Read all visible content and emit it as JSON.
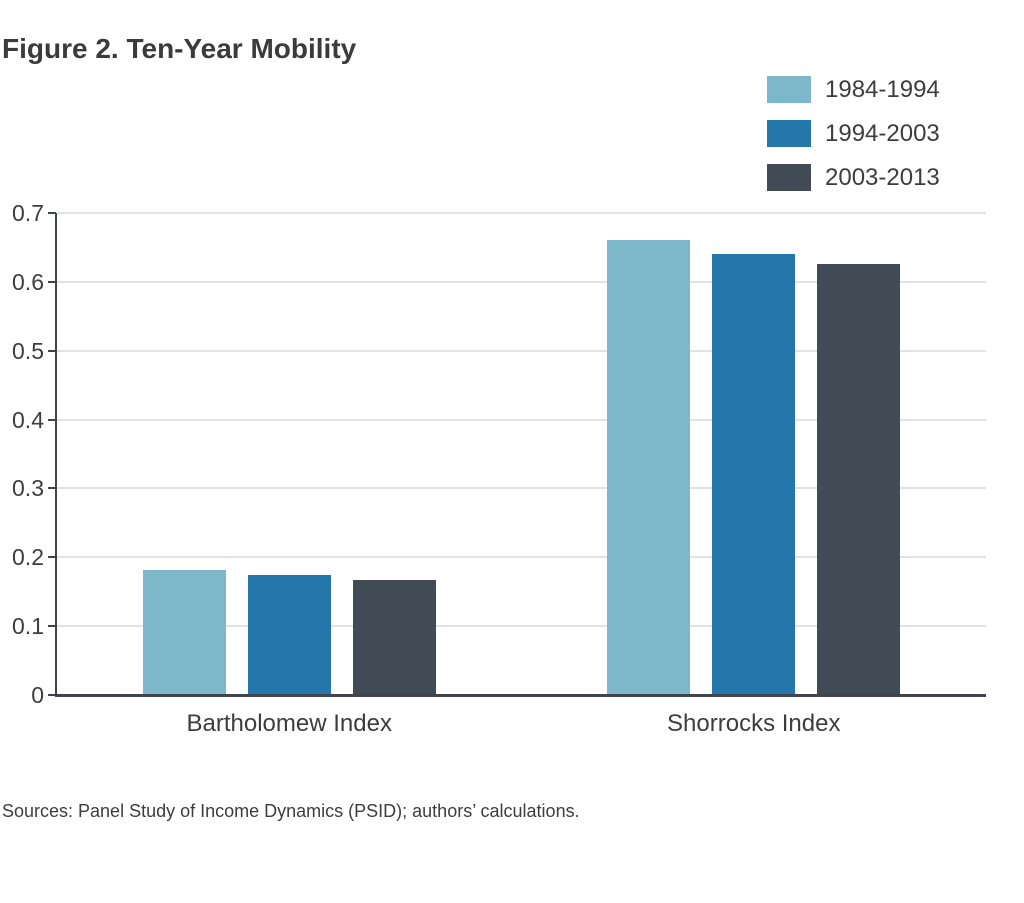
{
  "figure": {
    "title": "Figure 2. Ten-Year Mobility",
    "source_note": "Sources: Panel Study of Income Dynamics (PSID); authors’ calculations."
  },
  "chart_data": {
    "type": "bar",
    "title": "Figure 2. Ten-Year Mobility",
    "categories": [
      "Bartholomew Index",
      "Shorrocks Index"
    ],
    "series": [
      {
        "name": "1984-1994",
        "color": "#7cb7ca",
        "values": [
          0.182,
          0.661
        ]
      },
      {
        "name": "1994-2003",
        "color": "#2477aa",
        "values": [
          0.174,
          0.64
        ]
      },
      {
        "name": "2003-2013",
        "color": "#414b55",
        "values": [
          0.167,
          0.626
        ]
      }
    ],
    "xlabel": "",
    "ylabel": "",
    "ylim": [
      0,
      0.7
    ],
    "ytick_step": 0.1,
    "yticks": [
      "0",
      "0.1",
      "0.2",
      "0.3",
      "0.4",
      "0.5",
      "0.6",
      "0.7"
    ],
    "grid": "horizontal",
    "legend_position": "top-right",
    "axis_color": "#3f444a",
    "gridline_color": "#e2e2e2",
    "text_color": "#3d3d3d"
  }
}
